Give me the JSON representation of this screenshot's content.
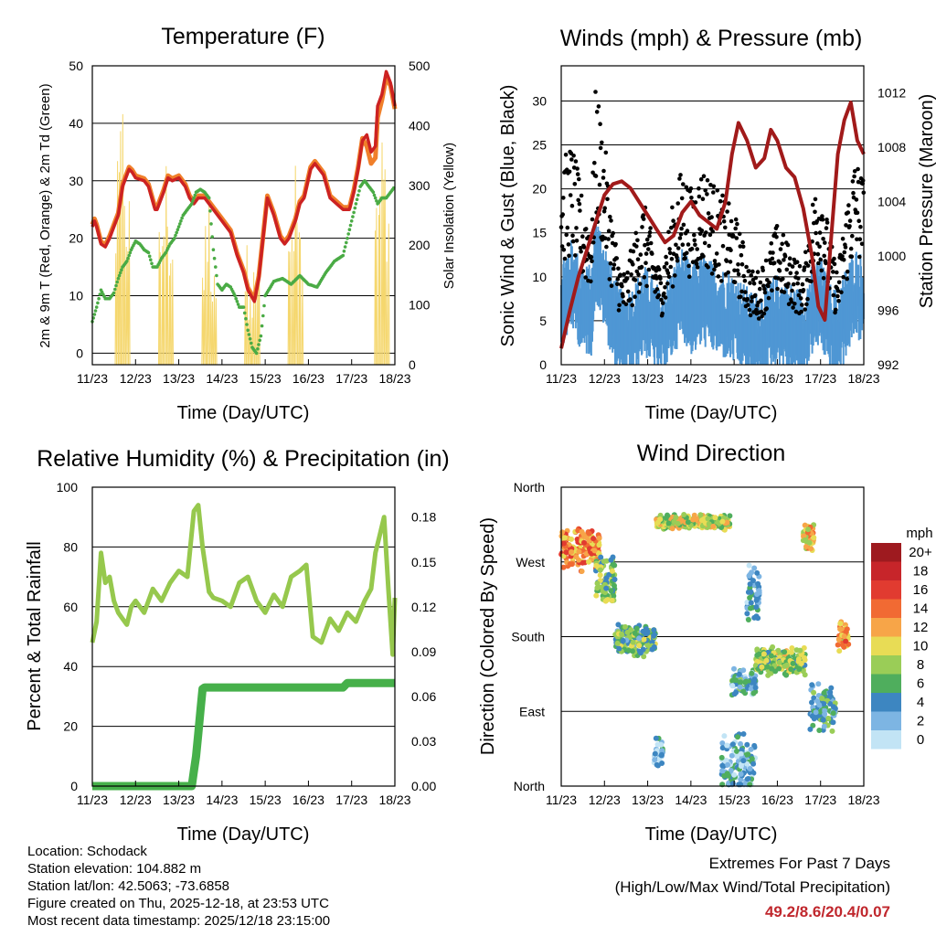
{
  "colors": {
    "temp_red": "#cc2222",
    "temp_orange": "#f07f2a",
    "dewpoint_green": "#4aab45",
    "solar_yellow": "#f5d76e",
    "gust_black": "#000000",
    "sonic_blue": "#4f97d4",
    "pressure_maroon": "#a11a1a",
    "rh_green": "#96c84d",
    "precip_green": "#46b04a",
    "extreme_red": "#c0272d"
  },
  "chart_data": [
    {
      "id": "temperature",
      "type": "line",
      "title": "Temperature (F)",
      "xlabel": "Time (Day/UTC)",
      "ylabel": "2m & 9m T (Red, Orange) & 2m Td (Green)",
      "ylabel_right": "Solar Insolation (Yellow)",
      "x_ticks": [
        "11/23",
        "12/23",
        "13/23",
        "14/23",
        "15/23",
        "16/23",
        "17/23",
        "18/23"
      ],
      "xlim": [
        0,
        7
      ],
      "ylim": [
        -2,
        50
      ],
      "y_ticks": [
        0,
        10,
        20,
        30,
        40,
        50
      ],
      "ylim_right": [
        0,
        500
      ],
      "y_ticks_right": [
        0,
        100,
        200,
        300,
        400,
        500
      ],
      "grid": true,
      "series": [
        {
          "name": "2m T",
          "color": "#cc2222",
          "x": [
            0,
            0.05,
            0.1,
            0.2,
            0.3,
            0.4,
            0.5,
            0.6,
            0.7,
            0.85,
            0.92,
            1.0,
            1.2,
            1.3,
            1.45,
            1.5,
            1.65,
            1.75,
            1.85,
            2.0,
            2.1,
            2.15,
            2.25,
            2.35,
            2.45,
            2.6,
            2.8,
            3.0,
            3.2,
            3.35,
            3.5,
            3.6,
            3.75,
            3.85,
            3.95,
            4.05,
            4.2,
            4.35,
            4.45,
            4.55,
            4.7,
            4.8,
            4.9,
            5.05,
            5.15,
            5.35,
            5.5,
            5.65,
            5.8,
            5.95,
            6.05,
            6.15,
            6.25,
            6.35,
            6.45,
            6.55,
            6.6,
            6.7,
            6.8,
            6.9,
            7.0
          ],
          "values": [
            22,
            23,
            22,
            19,
            18.5,
            20,
            22,
            24,
            29,
            32,
            31.5,
            30.5,
            30,
            29,
            25,
            25,
            28,
            30.5,
            30,
            30.5,
            29.5,
            29,
            27,
            26,
            27,
            27,
            25,
            23,
            21,
            17,
            14,
            11,
            9,
            13,
            20,
            27,
            24,
            20,
            19,
            20,
            23,
            26,
            27,
            32,
            33,
            31,
            27,
            26,
            25,
            25,
            28,
            32,
            37,
            38,
            35,
            36,
            43,
            45,
            49,
            47,
            43
          ]
        },
        {
          "name": "9m T",
          "color": "#f07f2a",
          "x": [
            0,
            0.05,
            0.1,
            0.2,
            0.3,
            0.4,
            0.5,
            0.6,
            0.7,
            0.85,
            0.92,
            1.0,
            1.2,
            1.3,
            1.45,
            1.5,
            1.65,
            1.75,
            1.85,
            2.0,
            2.1,
            2.15,
            2.25,
            2.35,
            2.45,
            2.6,
            2.8,
            3.0,
            3.2,
            3.35,
            3.5,
            3.6,
            3.75,
            3.85,
            3.95,
            4.05,
            4.2,
            4.35,
            4.45,
            4.55,
            4.7,
            4.8,
            4.9,
            5.05,
            5.15,
            5.35,
            5.5,
            5.65,
            5.8,
            5.95,
            6.05,
            6.15,
            6.25,
            6.35,
            6.45,
            6.55,
            6.6,
            6.7,
            6.8,
            6.9,
            7.0
          ],
          "values": [
            22.4,
            23.4,
            22.4,
            19.4,
            18.9,
            20.4,
            22.4,
            24.4,
            29.4,
            32.4,
            31.9,
            30.9,
            30.4,
            29.4,
            25.4,
            25.4,
            28.4,
            30.9,
            30.4,
            30.9,
            29.9,
            29.4,
            27.4,
            26.4,
            27.4,
            27.4,
            25.4,
            23.4,
            21.4,
            17.4,
            14.4,
            11.4,
            9.4,
            13.4,
            20.4,
            27.4,
            24.4,
            20.4,
            19.4,
            20.4,
            23.4,
            26.4,
            27.4,
            32.4,
            33.4,
            31.4,
            27.4,
            26.4,
            25.4,
            25.4,
            28.4,
            32.4,
            37.4,
            36,
            33,
            34,
            41,
            44,
            48,
            46.5,
            42.5
          ]
        },
        {
          "name": "2m Td",
          "color": "#4aab45",
          "x": [
            0,
            0.1,
            0.2,
            0.3,
            0.4,
            0.5,
            0.6,
            0.7,
            0.8,
            0.9,
            1.0,
            1.1,
            1.2,
            1.3,
            1.4,
            1.5,
            1.6,
            1.7,
            1.8,
            1.9,
            2.0,
            2.1,
            2.2,
            2.3,
            2.4,
            2.5,
            2.6,
            2.7,
            2.8,
            2.9,
            3.0,
            3.1,
            3.2,
            3.3,
            3.4,
            3.5,
            3.6,
            3.7,
            3.8,
            3.9,
            4.0,
            4.2,
            4.4,
            4.6,
            4.8,
            5.0,
            5.2,
            5.4,
            5.6,
            5.8,
            6.0,
            6.1,
            6.2,
            6.3,
            6.4,
            6.5,
            6.6,
            6.7,
            6.8,
            6.9,
            7.0
          ],
          "values": [
            5.5,
            8,
            11,
            9.5,
            9.5,
            10.5,
            13,
            15,
            16,
            18,
            19.5,
            19,
            18,
            17.5,
            15,
            15,
            16.5,
            17.5,
            19,
            20,
            22,
            24,
            25,
            26,
            28,
            28.5,
            28,
            27,
            18,
            12,
            11,
            12,
            11.5,
            10,
            8,
            8,
            4,
            1,
            0,
            3,
            10,
            12.5,
            13,
            12,
            13.5,
            12,
            11.5,
            14,
            16,
            17,
            23,
            26,
            29,
            30,
            29,
            28,
            26,
            27,
            27,
            28,
            29
          ]
        }
      ],
      "solar_right_axis": {
        "name": "Solar Insolation",
        "color": "#f5d76e",
        "day_centers": [
          0.7,
          1.7,
          2.7,
          3.7,
          4.7,
          5.7,
          6.7
        ],
        "peaks": [
          460,
          360,
          300,
          280,
          340,
          0,
          400
        ]
      }
    },
    {
      "id": "winds",
      "type": "scatter",
      "title": "Winds (mph) & Pressure (mb)",
      "xlabel": "Time (Day/UTC)",
      "ylabel": "Sonic Wind & Gust (Blue, Black)",
      "ylabel_right": "Station Pressure (Maroon)",
      "x_ticks": [
        "11/23",
        "12/23",
        "13/23",
        "14/23",
        "15/23",
        "16/23",
        "17/23",
        "18/23"
      ],
      "xlim": [
        0,
        7
      ],
      "ylim": [
        0,
        34
      ],
      "y_ticks": [
        0,
        5,
        10,
        15,
        20,
        25,
        30
      ],
      "ylim_right": [
        992,
        1014
      ],
      "y_ticks_right": [
        992,
        996,
        1000,
        1004,
        1008,
        1012
      ],
      "grid": true,
      "wind_envelope": {
        "x": [
          0,
          0.25,
          0.5,
          0.7,
          0.8,
          1.0,
          1.2,
          1.4,
          1.5,
          1.7,
          1.9,
          2.1,
          2.3,
          2.6,
          2.8,
          3.0,
          3.3,
          3.6,
          4.0,
          4.4,
          4.6,
          4.8,
          5.0,
          5.3,
          5.6,
          5.8,
          6.0,
          6.2,
          6.4,
          6.6,
          6.8,
          7.0
        ],
        "sonic": [
          9,
          11,
          8,
          8,
          14,
          11,
          7,
          5,
          5,
          6,
          8,
          7,
          5,
          8,
          10,
          8,
          9,
          8,
          7,
          5,
          5,
          6,
          7,
          6,
          5,
          8,
          9,
          6,
          5,
          8,
          10,
          9
        ],
        "gust": [
          17,
          19,
          14,
          13,
          24,
          19,
          12,
          8,
          8,
          11,
          14,
          11,
          8,
          14,
          17,
          15,
          17,
          15,
          13,
          8,
          8,
          10,
          12,
          10,
          8,
          14,
          17,
          11,
          8,
          14,
          18,
          16
        ]
      },
      "series": [
        {
          "name": "Station Pressure",
          "color": "#a11a1a",
          "x": [
            0,
            0.2,
            0.4,
            0.6,
            0.8,
            1.0,
            1.2,
            1.4,
            1.6,
            1.8,
            2.0,
            2.2,
            2.4,
            2.6,
            2.8,
            3.0,
            3.2,
            3.4,
            3.6,
            3.8,
            3.95,
            4.1,
            4.3,
            4.5,
            4.7,
            4.85,
            5.0,
            5.2,
            5.4,
            5.6,
            5.8,
            5.95,
            6.1,
            6.25,
            6.4,
            6.55,
            6.7,
            6.85,
            7.0
          ],
          "values": [
            993.2,
            996,
            998.5,
            1000.5,
            1002.5,
            1004.5,
            1005.3,
            1005.5,
            1005,
            1004,
            1003,
            1002,
            1001,
            1001.5,
            1003.2,
            1004,
            1003,
            1002.5,
            1002,
            1004,
            1007.5,
            1009.8,
            1008.5,
            1006.5,
            1007.2,
            1009.3,
            1008.5,
            1006.5,
            1005.8,
            1003.5,
            1000,
            996.3,
            995.3,
            1001.5,
            1007.5,
            1010,
            1011.3,
            1008.5,
            1007.5
          ]
        }
      ]
    },
    {
      "id": "humidity",
      "type": "line",
      "title": "Relative Humidity (%) & Precipitation (in)",
      "xlabel": "Time (Day/UTC)",
      "ylabel": "Percent & Total Rainfall",
      "x_ticks": [
        "11/23",
        "12/23",
        "13/23",
        "14/23",
        "15/23",
        "16/23",
        "17/23",
        "18/23"
      ],
      "xlim": [
        0,
        7
      ],
      "ylim": [
        0,
        100
      ],
      "y_ticks": [
        0,
        20,
        40,
        60,
        80,
        100
      ],
      "ylim_right": [
        0,
        0.2
      ],
      "y_ticks_right": [
        0.0,
        0.03,
        0.06,
        0.09,
        0.12,
        0.15,
        0.18
      ],
      "y_ticks_right_labels": [
        "0.00",
        "0.03",
        "0.06",
        "0.09",
        "0.12",
        "0.15",
        "0.18"
      ],
      "grid": true,
      "series": [
        {
          "name": "Relative Humidity",
          "color": "#96c84d",
          "x": [
            0,
            0.1,
            0.2,
            0.3,
            0.4,
            0.5,
            0.6,
            0.7,
            0.8,
            0.9,
            1.0,
            1.2,
            1.4,
            1.6,
            1.8,
            2.0,
            2.2,
            2.35,
            2.45,
            2.55,
            2.7,
            2.8,
            3.0,
            3.2,
            3.4,
            3.6,
            3.8,
            4.0,
            4.2,
            4.4,
            4.6,
            4.8,
            4.95,
            5.1,
            5.3,
            5.5,
            5.7,
            5.9,
            6.1,
            6.3,
            6.45,
            6.55,
            6.65,
            6.75,
            6.85,
            6.95,
            7.0
          ],
          "values": [
            48,
            55,
            78,
            68,
            70,
            62,
            58,
            56,
            54,
            60,
            62,
            58,
            66,
            62,
            68,
            72,
            70,
            92,
            94,
            80,
            65,
            63,
            62,
            60,
            68,
            70,
            62,
            58,
            64,
            60,
            70,
            72,
            74,
            50,
            48,
            56,
            52,
            58,
            55,
            62,
            66,
            78,
            84,
            90,
            66,
            44,
            63
          ]
        },
        {
          "name": "Total Precipitation",
          "color": "#46b04a",
          "axis": "right",
          "x": [
            0,
            2.3,
            2.35,
            2.4,
            2.45,
            2.5,
            2.55,
            2.6,
            2.7,
            5.8,
            5.9,
            7.0
          ],
          "values": [
            0,
            0,
            0.01,
            0.02,
            0.035,
            0.05,
            0.065,
            0.066,
            0.066,
            0.066,
            0.069,
            0.069
          ]
        }
      ]
    },
    {
      "id": "direction",
      "type": "scatter",
      "title": "Wind Direction",
      "xlabel": "Time (Day/UTC)",
      "ylabel": "Direction (Colored By Speed)",
      "x_ticks": [
        "11/23",
        "12/23",
        "13/23",
        "14/23",
        "15/23",
        "16/23",
        "17/23",
        "18/23"
      ],
      "xlim": [
        0,
        7
      ],
      "y_ticks_labels": [
        "North",
        "East",
        "South",
        "West",
        "North"
      ],
      "y_ticks_degrees": [
        0,
        90,
        180,
        270,
        360
      ],
      "ylim": [
        0,
        360
      ],
      "grid": true,
      "clusters": [
        {
          "x0": 0,
          "x1": 0.9,
          "dir": 285,
          "spread": 28,
          "speed": 13
        },
        {
          "x0": 0.8,
          "x1": 1.25,
          "dir": 245,
          "spread": 35,
          "speed": 7
        },
        {
          "x0": 1.25,
          "x1": 2.2,
          "dir": 175,
          "spread": 22,
          "speed": 6
        },
        {
          "x0": 2.15,
          "x1": 2.35,
          "dir": 40,
          "spread": 20,
          "speed": 2
        },
        {
          "x0": 2.2,
          "x1": 3.9,
          "dir": 318,
          "spread": 10,
          "speed": 9
        },
        {
          "x0": 3.7,
          "x1": 4.5,
          "dir": 25,
          "spread": 45,
          "speed": 3
        },
        {
          "x0": 3.95,
          "x1": 4.5,
          "dir": 125,
          "spread": 18,
          "speed": 4
        },
        {
          "x0": 4.3,
          "x1": 4.6,
          "dir": 230,
          "spread": 40,
          "speed": 3
        },
        {
          "x0": 4.5,
          "x1": 5.65,
          "dir": 150,
          "spread": 18,
          "speed": 8
        },
        {
          "x0": 5.6,
          "x1": 5.85,
          "dir": 300,
          "spread": 18,
          "speed": 11
        },
        {
          "x0": 5.75,
          "x1": 6.35,
          "dir": 95,
          "spread": 30,
          "speed": 5
        },
        {
          "x0": 6.4,
          "x1": 6.65,
          "dir": 180,
          "spread": 20,
          "speed": 12
        }
      ]
    }
  ],
  "legend": {
    "unit": "mph",
    "levels": [
      "20+",
      "18",
      "16",
      "14",
      "12",
      "10",
      "8",
      "6",
      "4",
      "2",
      "0"
    ],
    "colors": [
      "#9e1a1f",
      "#c7252a",
      "#e13b30",
      "#f16a33",
      "#f7a548",
      "#e8dc55",
      "#9acd57",
      "#4fae5d",
      "#3d86c1",
      "#7db5e3",
      "#c2e4f5"
    ]
  },
  "meta": {
    "location": "Location: Schodack",
    "elevation": "Station elevation: 104.882 m",
    "latlon": "Station lat/lon: 42.5063; -73.6858",
    "created": "Figure created on Thu, 2025-12-18, at 23:53 UTC",
    "recent": "Most recent data timestamp: 2025/12/18 23:15:00"
  },
  "extremes": {
    "line1": "Extremes For Past 7 Days",
    "line2": "(High/Low/Max Wind/Total Precipitation)",
    "values": "49.2/8.6/20.4/0.07"
  }
}
